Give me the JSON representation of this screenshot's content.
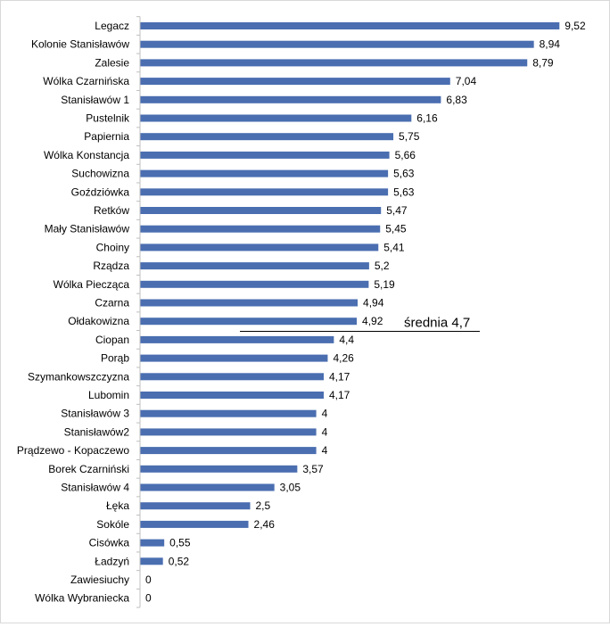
{
  "chart_data": {
    "type": "bar",
    "orientation": "horizontal",
    "categories": [
      "Legacz",
      "Kolonie Stanisławów",
      "Zalesie",
      "Wólka Czarnińska",
      "Stanisławów 1",
      "Pustelnik",
      "Papiernia",
      "Wólka Konstancja",
      "Suchowizna",
      "Goździówka",
      "Retków",
      "Mały Stanisławów",
      "Choiny",
      "Rządza",
      "Wólka Piecząca",
      "Czarna",
      "Ołdakowizna",
      "Ciopan",
      "Porąb",
      "Szymankowszczyzna",
      "Lubomin",
      "Stanisławów 3",
      "Stanisławów2",
      "Prądzewo - Kopaczewo",
      "Borek Czarniński",
      "Stanisławów 4",
      "Łęka",
      "Sokóle",
      "Cisówka",
      "Ładzyń",
      "Zawiesiuchy",
      "Wólka Wybraniecka"
    ],
    "values": [
      9.52,
      8.94,
      8.79,
      7.04,
      6.83,
      6.16,
      5.75,
      5.66,
      5.63,
      5.63,
      5.47,
      5.45,
      5.41,
      5.2,
      5.19,
      4.94,
      4.92,
      4.4,
      4.26,
      4.17,
      4.17,
      4,
      4,
      4,
      3.57,
      3.05,
      2.5,
      2.46,
      0.55,
      0.52,
      0,
      0
    ],
    "value_labels": [
      "9,52",
      "8,94",
      "8,79",
      "7,04",
      "6,83",
      "6,16",
      "5,75",
      "5,66",
      "5,63",
      "5,63",
      "5,47",
      "5,45",
      "5,41",
      "5,2",
      "5,19",
      "4,94",
      "4,92",
      "4,4",
      "4,26",
      "4,17",
      "4,17",
      "4",
      "4",
      "4",
      "3,57",
      "3,05",
      "2,5",
      "2,46",
      "0,55",
      "0,52",
      "0",
      "0"
    ],
    "xlim": [
      0,
      10
    ],
    "grid": false,
    "bar_color": "#4a6eb0",
    "average": {
      "value": 4.7,
      "label": "średnia 4,7"
    }
  }
}
